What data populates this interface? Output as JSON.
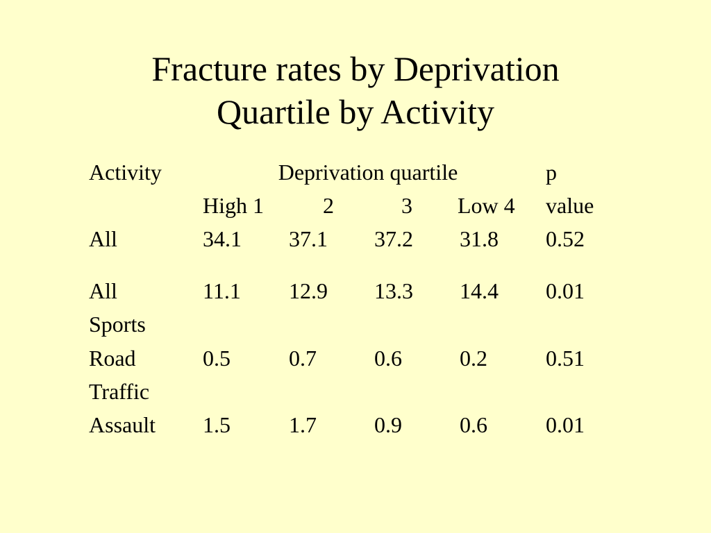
{
  "title": {
    "line1": "Fracture rates by Deprivation",
    "line2": "Quartile by Activity"
  },
  "table": {
    "header": {
      "activity": "Activity",
      "deprivation_quartile": "Deprivation quartile",
      "p_line1": "p",
      "p_line2": "value",
      "q1": "High 1",
      "q2": "2",
      "q3": "3",
      "q4": "Low 4"
    },
    "rows": [
      {
        "activity_line1": "All",
        "activity_line2": "",
        "q1": "34.1",
        "q2": "37.1",
        "q3": "37.2",
        "q4": "31.8",
        "p": "0.52"
      },
      {
        "activity_line1": "All",
        "activity_line2": "Sports",
        "q1": "11.1",
        "q2": "12.9",
        "q3": "13.3",
        "q4": "14.4",
        "p": "0.01"
      },
      {
        "activity_line1": "Road",
        "activity_line2": "Traffic",
        "q1": "0.5",
        "q2": "0.7",
        "q3": "0.6",
        "q4": "0.2",
        "p": "0.51"
      },
      {
        "activity_line1": "Assault",
        "activity_line2": "",
        "q1": "1.5",
        "q2": "1.7",
        "q3": "0.9",
        "q4": "0.6",
        "p": "0.01"
      }
    ]
  }
}
